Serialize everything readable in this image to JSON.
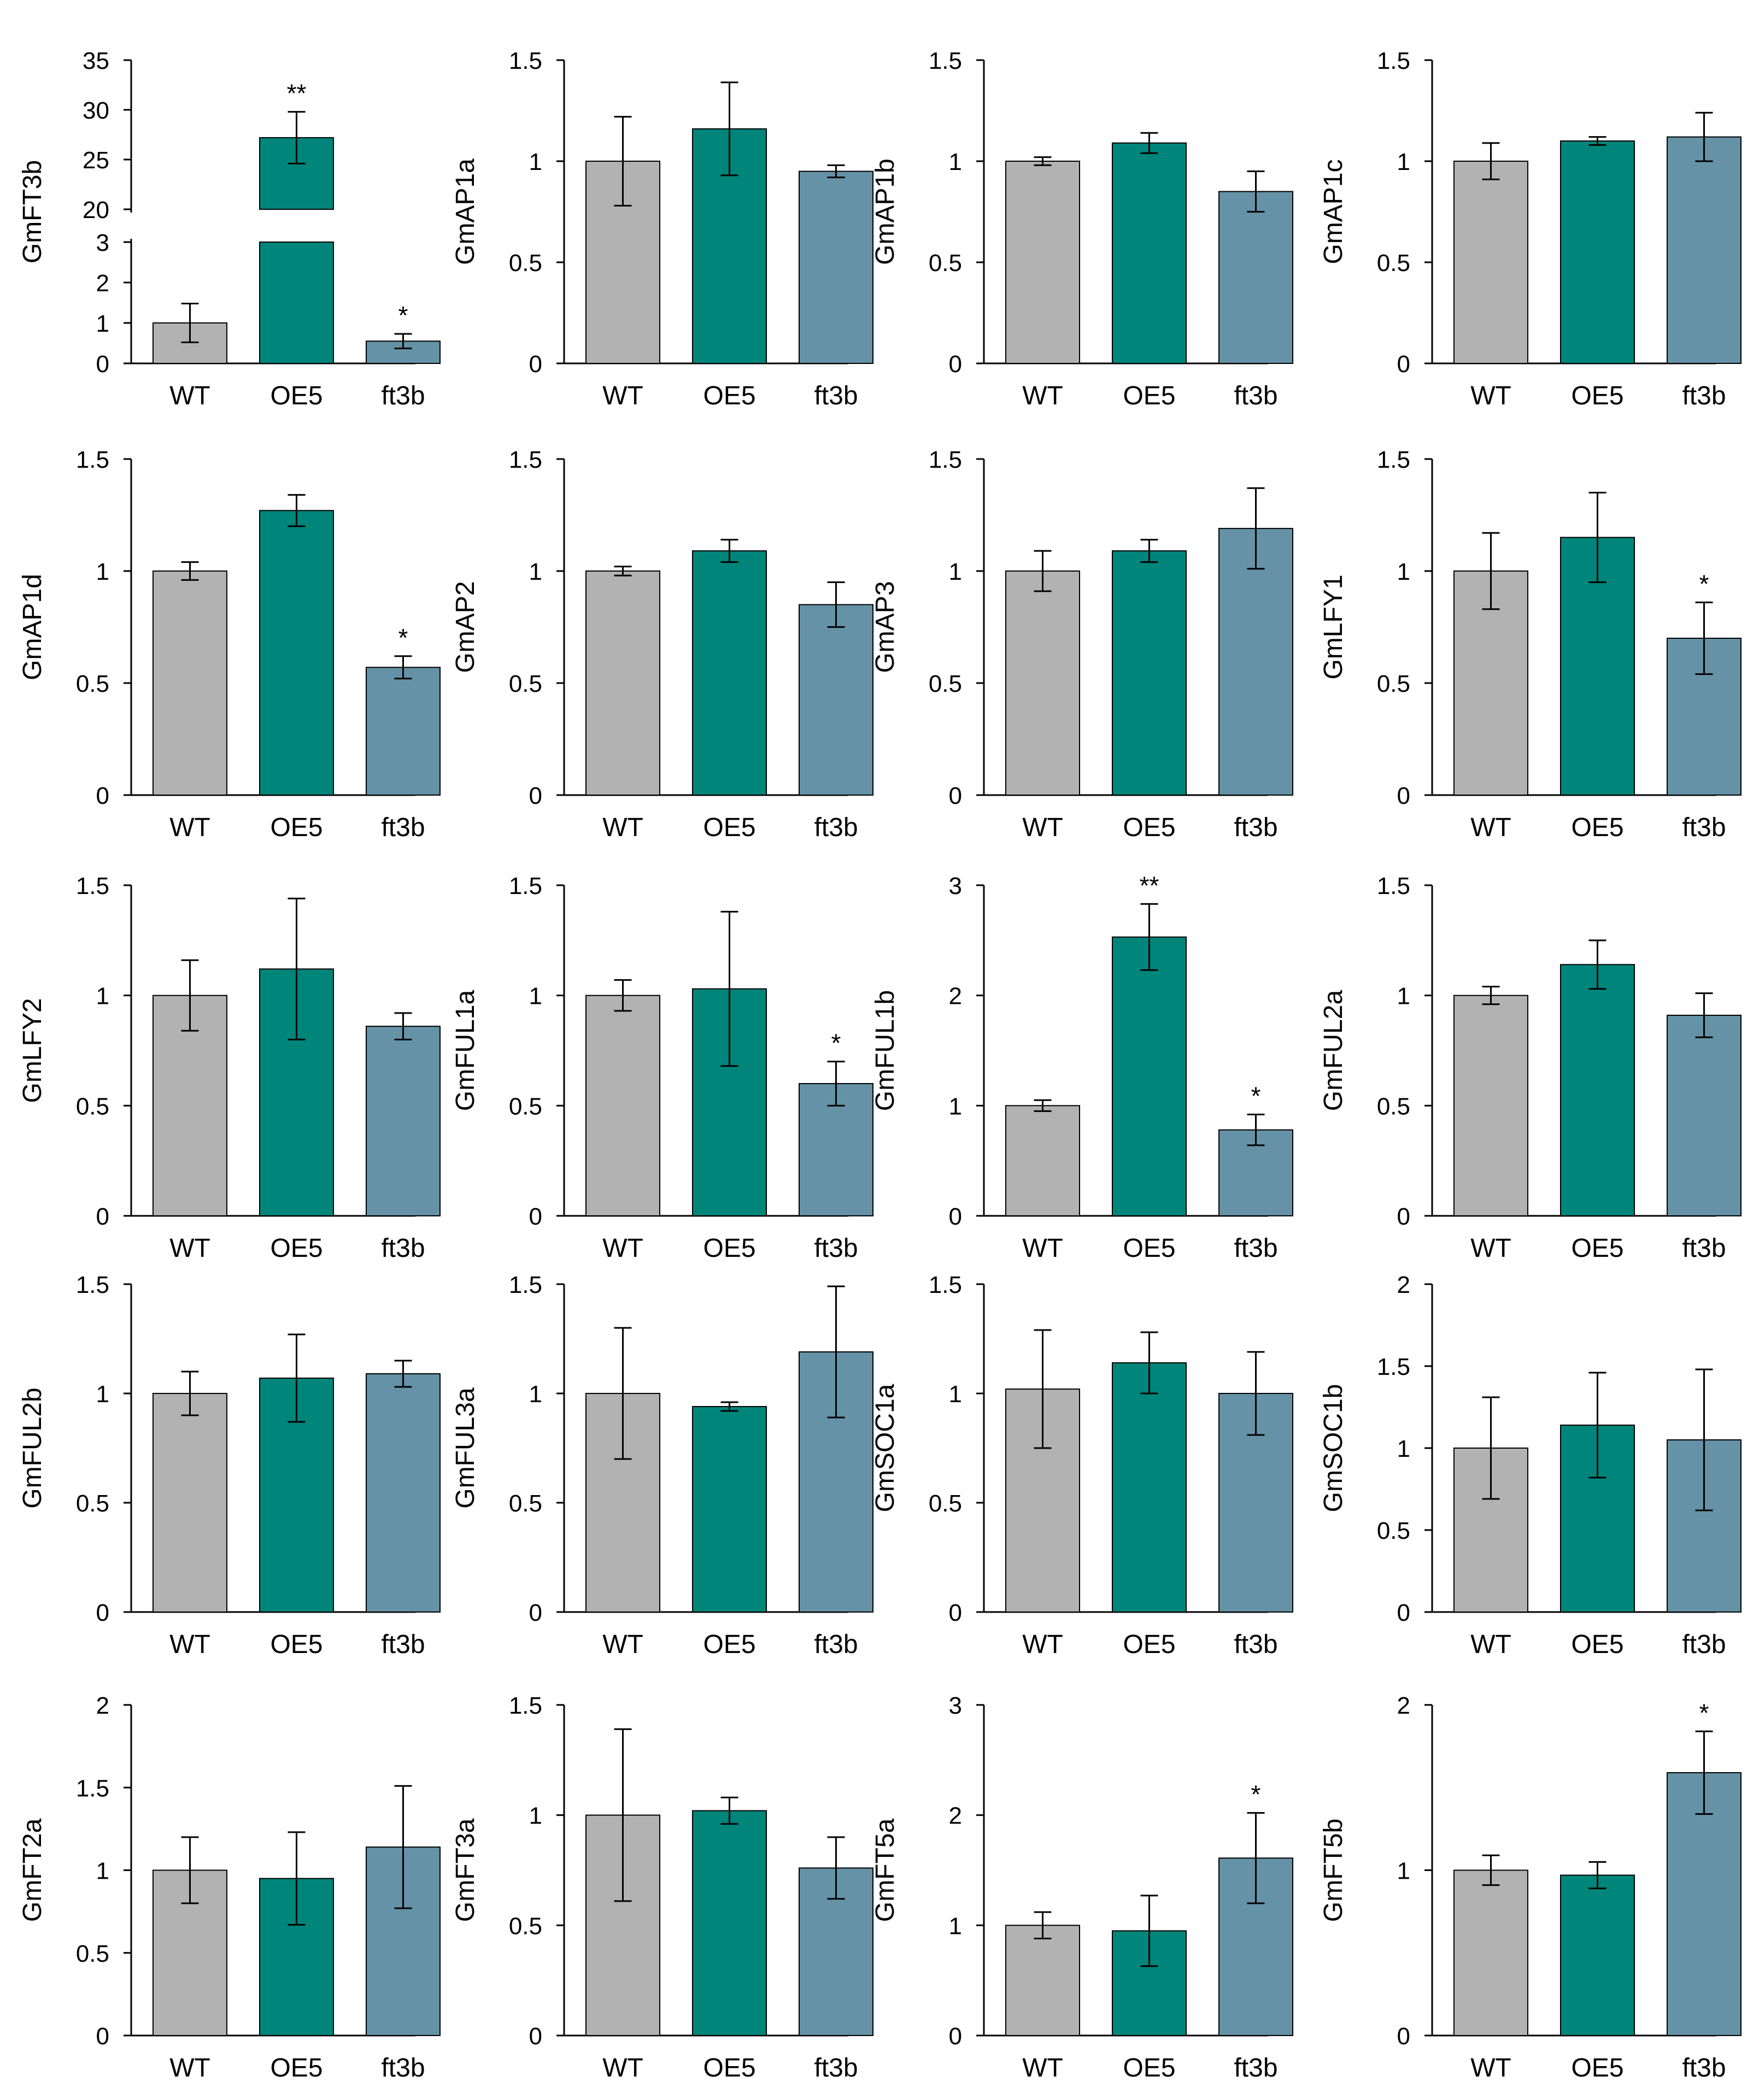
{
  "colors": {
    "WT": "#b2b2b2",
    "OE5": "#00857a",
    "ft3b": "#6592a6",
    "axis": "#000000"
  },
  "chart_data": [
    {
      "type": "bar",
      "ylabel": "GmFT3b",
      "categories": [
        "WT",
        "OE5",
        "ft3b"
      ],
      "values": [
        1.0,
        27.2,
        0.55
      ],
      "errors": [
        0.48,
        2.6,
        0.18
      ],
      "significance": [
        "",
        "**",
        "*"
      ],
      "axis_break": {
        "lower": [
          0,
          3
        ],
        "upper": [
          20,
          35
        ]
      },
      "ticks_lower": [
        "0",
        "1",
        "2",
        "3"
      ],
      "ticks_upper": [
        "20",
        "25",
        "30",
        "35"
      ]
    },
    {
      "type": "bar",
      "ylabel": "GmAP1a",
      "categories": [
        "WT",
        "OE5",
        "ft3b"
      ],
      "values": [
        1.0,
        1.16,
        0.95
      ],
      "errors": [
        0.22,
        0.23,
        0.03
      ],
      "significance": [
        "",
        "",
        ""
      ],
      "ylim": [
        0,
        1.5
      ],
      "ticks": [
        "0",
        "0.5",
        "1",
        "1.5"
      ]
    },
    {
      "type": "bar",
      "ylabel": "GmAP1b",
      "categories": [
        "WT",
        "OE5",
        "ft3b"
      ],
      "values": [
        1.0,
        1.09,
        0.85
      ],
      "errors": [
        0.02,
        0.05,
        0.1
      ],
      "significance": [
        "",
        "",
        ""
      ],
      "ylim": [
        0,
        1.5
      ],
      "ticks": [
        "0",
        "0.5",
        "1",
        "1.5"
      ]
    },
    {
      "type": "bar",
      "ylabel": "GmAP1c",
      "categories": [
        "WT",
        "OE5",
        "ft3b"
      ],
      "values": [
        1.0,
        1.1,
        1.12
      ],
      "errors": [
        0.09,
        0.02,
        0.12
      ],
      "significance": [
        "",
        "",
        ""
      ],
      "ylim": [
        0,
        1.5
      ],
      "ticks": [
        "0",
        "0.5",
        "1",
        "1.5"
      ]
    },
    {
      "type": "bar",
      "ylabel": "GmAP1d",
      "categories": [
        "WT",
        "OE5",
        "ft3b"
      ],
      "values": [
        1.0,
        1.27,
        0.57
      ],
      "errors": [
        0.04,
        0.07,
        0.05
      ],
      "significance": [
        "",
        "",
        "*"
      ],
      "ylim": [
        0,
        1.5
      ],
      "ticks": [
        "0",
        "0.5",
        "1",
        "1.5"
      ]
    },
    {
      "type": "bar",
      "ylabel": "GmAP2",
      "categories": [
        "WT",
        "OE5",
        "ft3b"
      ],
      "values": [
        1.0,
        1.09,
        0.85
      ],
      "errors": [
        0.02,
        0.05,
        0.1
      ],
      "significance": [
        "",
        "",
        ""
      ],
      "ylim": [
        0,
        1.5
      ],
      "ticks": [
        "0",
        "0.5",
        "1",
        "1.5"
      ]
    },
    {
      "type": "bar",
      "ylabel": "GmAP3",
      "categories": [
        "WT",
        "OE5",
        "ft3b"
      ],
      "values": [
        1.0,
        1.09,
        1.19
      ],
      "errors": [
        0.09,
        0.05,
        0.18
      ],
      "significance": [
        "",
        "",
        ""
      ],
      "ylim": [
        0,
        1.5
      ],
      "ticks": [
        "0",
        "0.5",
        "1",
        "1.5"
      ]
    },
    {
      "type": "bar",
      "ylabel": "GmLFY1",
      "categories": [
        "WT",
        "OE5",
        "ft3b"
      ],
      "values": [
        1.0,
        1.15,
        0.7
      ],
      "errors": [
        0.17,
        0.2,
        0.16
      ],
      "significance": [
        "",
        "",
        "*"
      ],
      "ylim": [
        0,
        1.5
      ],
      "ticks": [
        "0",
        "0.5",
        "1",
        "1.5"
      ]
    },
    {
      "type": "bar",
      "ylabel": "GmLFY2",
      "categories": [
        "WT",
        "OE5",
        "ft3b"
      ],
      "values": [
        1.0,
        1.12,
        0.86
      ],
      "errors": [
        0.16,
        0.32,
        0.06
      ],
      "significance": [
        "",
        "",
        ""
      ],
      "ylim": [
        0,
        1.5
      ],
      "ticks": [
        "0",
        "0.5",
        "1",
        "1.5"
      ]
    },
    {
      "type": "bar",
      "ylabel": "GmFUL1a",
      "categories": [
        "WT",
        "OE5",
        "ft3b"
      ],
      "values": [
        1.0,
        1.03,
        0.6
      ],
      "errors": [
        0.07,
        0.35,
        0.1
      ],
      "significance": [
        "",
        "",
        "*"
      ],
      "ylim": [
        0,
        1.5
      ],
      "ticks": [
        "0",
        "0.5",
        "1",
        "1.5"
      ]
    },
    {
      "type": "bar",
      "ylabel": "GmFUL1b",
      "categories": [
        "WT",
        "OE5",
        "ft3b"
      ],
      "values": [
        1.0,
        2.53,
        0.78
      ],
      "errors": [
        0.05,
        0.3,
        0.14
      ],
      "significance": [
        "",
        "**",
        "*"
      ],
      "ylim": [
        0,
        3
      ],
      "ticks": [
        "0",
        "1",
        "2",
        "3"
      ]
    },
    {
      "type": "bar",
      "ylabel": "GmFUL2a",
      "categories": [
        "WT",
        "OE5",
        "ft3b"
      ],
      "values": [
        1.0,
        1.14,
        0.91
      ],
      "errors": [
        0.04,
        0.11,
        0.1
      ],
      "significance": [
        "",
        "",
        ""
      ],
      "ylim": [
        0,
        1.5
      ],
      "ticks": [
        "0",
        "0.5",
        "1",
        "1.5"
      ]
    },
    {
      "type": "bar",
      "ylabel": "GmFUL2b",
      "categories": [
        "WT",
        "OE5",
        "ft3b"
      ],
      "values": [
        1.0,
        1.07,
        1.09
      ],
      "errors": [
        0.1,
        0.2,
        0.06
      ],
      "significance": [
        "",
        "",
        ""
      ],
      "ylim": [
        0,
        1.5
      ],
      "ticks": [
        "0",
        "0.5",
        "1",
        "1.5"
      ]
    },
    {
      "type": "bar",
      "ylabel": "GmFUL3a",
      "categories": [
        "WT",
        "OE5",
        "ft3b"
      ],
      "values": [
        1.0,
        0.94,
        1.19
      ],
      "errors": [
        0.3,
        0.02,
        0.3
      ],
      "significance": [
        "",
        "",
        ""
      ],
      "ylim": [
        0,
        1.5
      ],
      "ticks": [
        "0",
        "0.5",
        "1",
        "1.5"
      ]
    },
    {
      "type": "bar",
      "ylabel": "GmSOC1a",
      "categories": [
        "WT",
        "OE5",
        "ft3b"
      ],
      "values": [
        1.02,
        1.14,
        1.0
      ],
      "errors": [
        0.27,
        0.14,
        0.19
      ],
      "significance": [
        "",
        "",
        ""
      ],
      "ylim": [
        0,
        1.5
      ],
      "ticks": [
        "0",
        "0.5",
        "1",
        "1.5"
      ]
    },
    {
      "type": "bar",
      "ylabel": "GmSOC1b",
      "categories": [
        "WT",
        "OE5",
        "ft3b"
      ],
      "values": [
        1.0,
        1.14,
        1.05
      ],
      "errors": [
        0.31,
        0.32,
        0.43
      ],
      "significance": [
        "",
        "",
        ""
      ],
      "ylim": [
        0,
        2
      ],
      "ticks": [
        "0",
        "0.5",
        "1",
        "1.5",
        "2"
      ]
    },
    {
      "type": "bar",
      "ylabel": "GmFT2a",
      "categories": [
        "WT",
        "OE5",
        "ft3b"
      ],
      "values": [
        1.0,
        0.95,
        1.14
      ],
      "errors": [
        0.2,
        0.28,
        0.37
      ],
      "significance": [
        "",
        "",
        ""
      ],
      "ylim": [
        0,
        2
      ],
      "ticks": [
        "0",
        "0.5",
        "1",
        "1.5",
        "2"
      ]
    },
    {
      "type": "bar",
      "ylabel": "GmFT3a",
      "categories": [
        "WT",
        "OE5",
        "ft3b"
      ],
      "values": [
        1.0,
        1.02,
        0.76
      ],
      "errors": [
        0.39,
        0.06,
        0.14
      ],
      "significance": [
        "",
        "",
        ""
      ],
      "ylim": [
        0,
        1.5
      ],
      "ticks": [
        "0",
        "0.5",
        "1",
        "1.5"
      ]
    },
    {
      "type": "bar",
      "ylabel": "GmFT5a",
      "categories": [
        "WT",
        "OE5",
        "ft3b"
      ],
      "values": [
        1.0,
        0.95,
        1.61
      ],
      "errors": [
        0.12,
        0.32,
        0.41
      ],
      "significance": [
        "",
        "",
        "*"
      ],
      "ylim": [
        0,
        3
      ],
      "ticks": [
        "0",
        "1",
        "2",
        "3"
      ]
    },
    {
      "type": "bar",
      "ylabel": "GmFT5b",
      "categories": [
        "WT",
        "OE5",
        "ft3b"
      ],
      "values": [
        1.0,
        0.97,
        1.59
      ],
      "errors": [
        0.09,
        0.08,
        0.25
      ],
      "significance": [
        "",
        "",
        "*"
      ],
      "ylim": [
        0,
        2
      ],
      "ticks": [
        "0",
        "1",
        "2"
      ]
    }
  ]
}
